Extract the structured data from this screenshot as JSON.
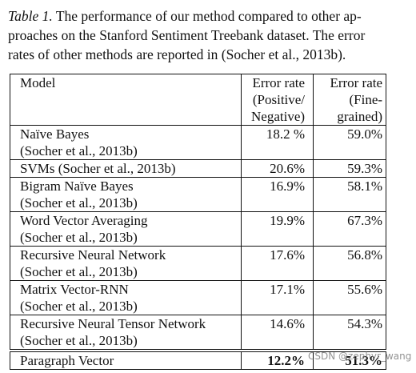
{
  "caption": {
    "label": "Table 1.",
    "lines": [
      "The performance of our method compared to other ap-",
      "proaches on the Stanford Sentiment Treebank dataset. The error",
      "rates of other methods are reported in (Socher et al., 2013b)."
    ]
  },
  "table": {
    "header": [
      [
        "Model"
      ],
      [
        "Error rate",
        "(Positive/",
        "Negative)"
      ],
      [
        "Error rate",
        "(Fine-",
        "grained)"
      ]
    ],
    "rows": [
      [
        [
          "Naïve Bayes",
          "(Socher et al., 2013b)"
        ],
        "18.2 %",
        "59.0%"
      ],
      [
        [
          "SVMs (Socher et al., 2013b)"
        ],
        "20.6%",
        "59.3%"
      ],
      [
        [
          "Bigram Naïve Bayes",
          "(Socher et al., 2013b)"
        ],
        "16.9%",
        "58.1%"
      ],
      [
        [
          "Word Vector Averaging",
          "(Socher et al., 2013b)"
        ],
        "19.9%",
        "67.3%"
      ],
      [
        [
          "Recursive Neural Network",
          "(Socher et al., 2013b)"
        ],
        "17.6%",
        "56.8%"
      ],
      [
        [
          "Matrix Vector-RNN",
          "(Socher et al., 2013b)"
        ],
        "17.1%",
        "55.6%"
      ],
      [
        [
          "Recursive Neural Tensor Network",
          "(Socher et al., 2013b)"
        ],
        "14.6%",
        "54.3%"
      ],
      [
        [
          "Paragraph Vector"
        ],
        "12.2%",
        "51.3%"
      ]
    ]
  },
  "watermark": "CSDN @zephyr_wang"
}
